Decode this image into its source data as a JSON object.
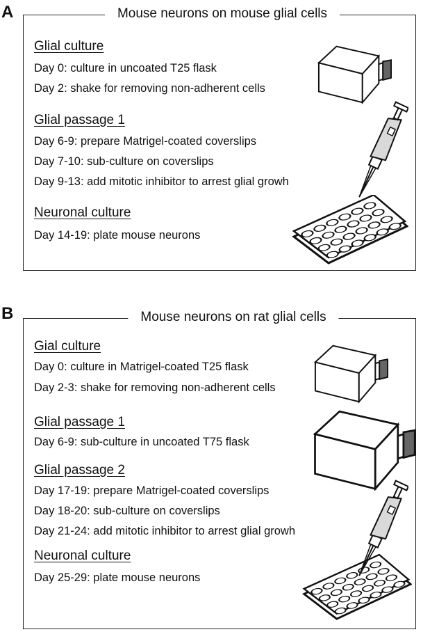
{
  "panels": [
    {
      "label": "A",
      "title": "Mouse neurons on mouse glial cells",
      "sections": [
        {
          "heading": "Glial culture",
          "steps": [
            "Day 0: culture in uncoated T25 flask",
            "Day 2: shake for removing non-adherent cells"
          ]
        },
        {
          "heading": "Glial passage 1",
          "steps": [
            "Day 6-9: prepare Matrigel-coated coverslips",
            "Day 7-10: sub-culture on coverslips",
            "Day 9-13: add mitotic inhibitor to arrest glial growh"
          ]
        },
        {
          "heading": "Neuronal culture",
          "steps": [
            "Day 14-19: plate mouse neurons"
          ]
        }
      ]
    },
    {
      "label": "B",
      "title": "Mouse neurons on rat glial cells",
      "sections": [
        {
          "heading": "Gial culture",
          "steps": [
            "Day 0: culture in Matrigel-coated T25 flask",
            "Day 2-3: shake for removing non-adherent cells"
          ]
        },
        {
          "heading": "Glial passage 1",
          "steps": [
            "Day 6-9: sub-culture in uncoated T75 flask"
          ]
        },
        {
          "heading": "Glial passage 2",
          "steps": [
            "Day 17-19: prepare Matrigel-coated coverslips",
            "Day 18-20: sub-culture on coverslips",
            "Day 21-24: add mitotic inhibitor to arrest glial growh"
          ]
        },
        {
          "heading": "Neuronal culture",
          "steps": [
            "Day 25-29: plate mouse neurons"
          ]
        }
      ]
    }
  ],
  "icons": [
    "t25-flask-icon",
    "t75-flask-icon",
    "pipette-icon",
    "well-plate-icon"
  ],
  "colors": {
    "line": "#222222",
    "pipette_fill": "#d9d9d9",
    "cap_fill": "#555555"
  }
}
